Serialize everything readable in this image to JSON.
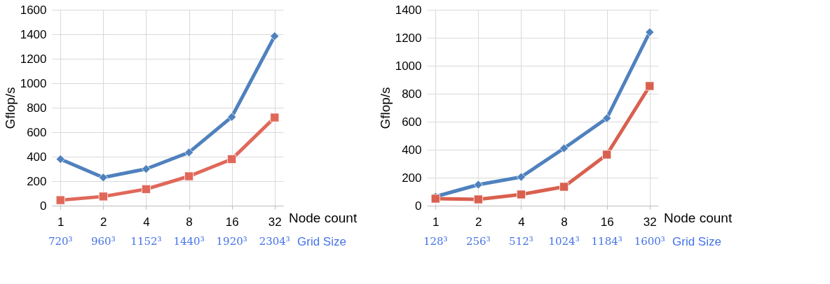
{
  "chart_data": [
    {
      "type": "line",
      "ylabel": "Gflop/s",
      "categories": [
        "1",
        "2",
        "4",
        "8",
        "16",
        "32"
      ],
      "ylim": [
        0,
        1600
      ],
      "yticks": [
        0,
        200,
        400,
        600,
        800,
        1000,
        1200,
        1400,
        1600
      ],
      "grid": true,
      "legend": false,
      "series": [
        {
          "color": "#4f81bd",
          "marker": "diamond",
          "values": [
            380,
            230,
            300,
            435,
            725,
            1385
          ]
        },
        {
          "color": "#e0685a",
          "marker": "square",
          "values": [
            45,
            75,
            135,
            240,
            380,
            720
          ]
        }
      ],
      "annotations": [
        "Node count",
        "Grid Size",
        "720³",
        "960³",
        "1152³",
        "1440³",
        "1920³",
        "2304³"
      ]
    },
    {
      "type": "line",
      "ylabel": "Gflop/s",
      "categories": [
        "1",
        "2",
        "4",
        "8",
        "16",
        "32"
      ],
      "ylim": [
        0,
        1400
      ],
      "yticks": [
        0,
        200,
        400,
        600,
        800,
        1000,
        1200,
        1400
      ],
      "grid": true,
      "legend": false,
      "series": [
        {
          "color": "#4f81bd",
          "marker": "diamond",
          "values": [
            65,
            150,
            205,
            410,
            625,
            1240
          ]
        },
        {
          "color": "#d9604f",
          "marker": "square",
          "values": [
            50,
            45,
            80,
            135,
            365,
            855
          ]
        }
      ],
      "annotations": [
        "Node count",
        "Grid Size",
        "128³",
        "256³",
        "512³",
        "1024³",
        "1184³",
        "1600³"
      ]
    }
  ]
}
